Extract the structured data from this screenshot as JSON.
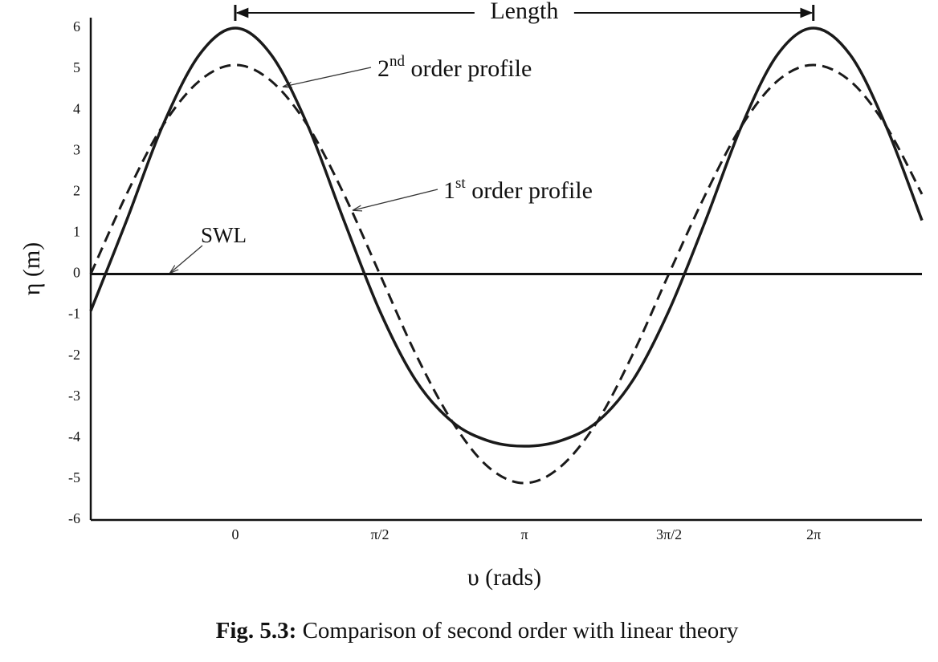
{
  "chart_data": {
    "type": "line",
    "y_label": "η (m)",
    "x_label": "υ (rads)",
    "caption": {
      "number": "Fig. 5.3:",
      "text": " Comparison of second order with linear theory"
    },
    "x": [
      -1.57,
      -1.18,
      -0.79,
      -0.39,
      0,
      0.39,
      0.79,
      1.18,
      1.57,
      1.96,
      2.36,
      2.75,
      3.14,
      3.53,
      3.93,
      4.32,
      4.71,
      5.11,
      5.5,
      5.89,
      6.28,
      6.68,
      7.07,
      7.46
    ],
    "series": [
      {
        "label": [
          "2",
          "nd",
          " order profile"
        ],
        "color": "#1a1a1a",
        "dash": false,
        "values": [
          -0.9,
          1.31,
          3.61,
          5.35,
          6.0,
          5.35,
          3.61,
          1.31,
          -0.9,
          -2.59,
          -3.61,
          -4.07,
          -4.2,
          -4.07,
          -3.61,
          -2.59,
          -0.9,
          1.31,
          3.61,
          5.35,
          6.0,
          5.35,
          3.61,
          1.31
        ]
      },
      {
        "label": [
          "1",
          "st",
          " order profile"
        ],
        "color": "#1a1a1a",
        "dash": true,
        "values": [
          0,
          1.95,
          3.61,
          4.71,
          5.1,
          4.71,
          3.61,
          1.95,
          0,
          -1.95,
          -3.61,
          -4.71,
          -5.1,
          -4.71,
          -3.61,
          -1.95,
          0,
          1.95,
          3.61,
          4.71,
          5.1,
          4.71,
          3.61,
          1.95
        ]
      }
    ],
    "swl": {
      "label": "SWL",
      "level": 0
    },
    "length": {
      "label": "Length",
      "from": 0,
      "to": 6.28
    },
    "xlim": [
      -1.57,
      7.46
    ],
    "ylim": [
      -6,
      6
    ],
    "xticks": [
      0,
      {
        "value": 1.5708,
        "label": "π/2"
      },
      {
        "value": 3.1416,
        "label": "π"
      },
      {
        "value": 4.7124,
        "label": "3π/2"
      },
      {
        "value": 6.2832,
        "label": "2π"
      }
    ],
    "yticks": [
      6,
      5,
      4,
      3,
      2,
      1,
      0,
      -1,
      -2,
      -3,
      -4,
      -5,
      -6
    ]
  }
}
